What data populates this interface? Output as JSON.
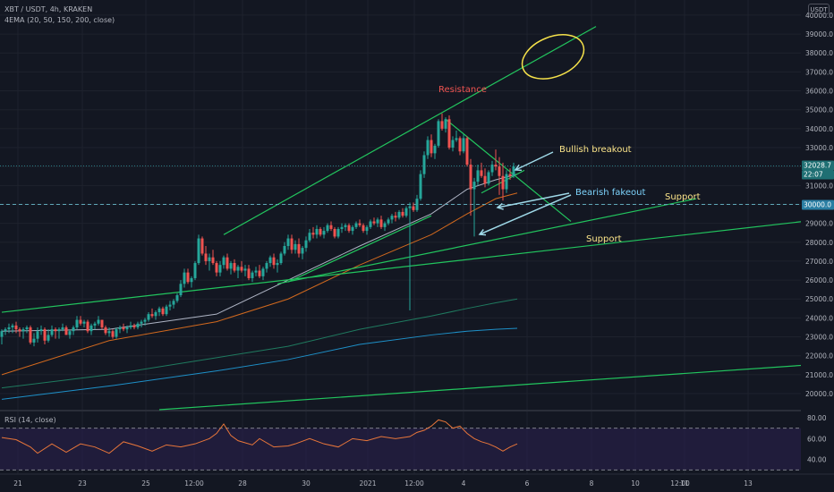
{
  "header": {
    "symbol": "XBT / USDT, 4h, KRAKEN",
    "indicator": "4EMA (20, 50, 150, 200, close)",
    "currency": "USDT"
  },
  "rsi_panel": {
    "label": "RSI (14, close)"
  },
  "colors": {
    "background": "#131722",
    "grid": "#1e222d",
    "candle_up": "#26a69a",
    "candle_down": "#ef5350",
    "trendline": "#22c55e",
    "ema20": "#aeb4c4",
    "ema50": "#d2691e",
    "ema150": "#1f7a5f",
    "ema200": "#1e90c8",
    "rsi_line": "#e8763a",
    "rsi_band": "#2b2050",
    "annotation_arrow": "#9fd9e8",
    "ellipse": "#f5e14a"
  },
  "annotations": {
    "resistance": "Resistance",
    "bullish": "Bullish breakout",
    "bearish": "Bearish fakeout",
    "support1": "Support",
    "support2": "Support"
  },
  "price_labels": {
    "current": "32028.7",
    "countdown": "22:07",
    "dashed_level": "30000.0"
  },
  "chart_data": {
    "type": "candlestick",
    "x_axis_labels": [
      "21",
      "23",
      "25",
      "12:00",
      "28",
      "30",
      "2021",
      "12:00",
      "4",
      "6",
      "8",
      "10",
      "12:00",
      "11",
      "13"
    ],
    "y_axis_ticks": [
      "40000.0",
      "39000.0",
      "38000.0",
      "37000.0",
      "36000.0",
      "35000.0",
      "34000.0",
      "33000.0",
      "32000.0",
      "31000.0",
      "30000.0",
      "29000.0",
      "28000.0",
      "27000.0",
      "26000.0",
      "25000.0",
      "24000.0",
      "23000.0",
      "22000.0",
      "21000.0",
      "20000.0"
    ],
    "ylim": [
      19150,
      40800
    ],
    "rsi_ticks": [
      "80.00",
      "60.00",
      "40.00"
    ],
    "rsi_levels": [
      70,
      30
    ],
    "rsi_ylim": [
      26,
      86
    ],
    "current_price": 32028.7,
    "dashed_level": 30000,
    "ema_anchors": {
      "ema20": [
        [
          0,
          23300
        ],
        [
          30,
          23400
        ],
        [
          60,
          24200
        ],
        [
          80,
          26000
        ],
        [
          100,
          27800
        ],
        [
          120,
          29500
        ],
        [
          130,
          30800
        ],
        [
          138,
          31300
        ],
        [
          144,
          31600
        ]
      ],
      "ema50": [
        [
          0,
          21000
        ],
        [
          30,
          22800
        ],
        [
          60,
          23800
        ],
        [
          80,
          25000
        ],
        [
          100,
          26800
        ],
        [
          120,
          28400
        ],
        [
          130,
          29500
        ],
        [
          138,
          30300
        ],
        [
          144,
          30600
        ]
      ],
      "ema150": [
        [
          0,
          20300
        ],
        [
          30,
          21000
        ],
        [
          60,
          21900
        ],
        [
          80,
          22500
        ],
        [
          100,
          23400
        ],
        [
          120,
          24100
        ],
        [
          130,
          24500
        ],
        [
          138,
          24800
        ],
        [
          144,
          25000
        ]
      ],
      "ema200": [
        [
          0,
          19700
        ],
        [
          30,
          20400
        ],
        [
          60,
          21200
        ],
        [
          80,
          21800
        ],
        [
          100,
          22600
        ],
        [
          120,
          23100
        ],
        [
          130,
          23300
        ],
        [
          138,
          23400
        ],
        [
          144,
          23450
        ]
      ]
    },
    "trendlines": [
      {
        "name": "resistance",
        "from": [
          62,
          28400
        ],
        "to": [
          166,
          39400
        ]
      },
      {
        "name": "upper-support",
        "from": [
          77,
          25800
        ],
        "to": [
          194,
          30300
        ]
      },
      {
        "name": "lower-support",
        "from": [
          0,
          24300
        ],
        "to": [
          224,
          29100
        ]
      },
      {
        "name": "rising-support",
        "from": [
          80,
          25900
        ],
        "to": [
          120,
          29400
        ]
      },
      {
        "name": "descending-resistance",
        "from": [
          124,
          34500
        ],
        "to": [
          159,
          29100
        ]
      },
      {
        "name": "long-term-support",
        "from": [
          44,
          19150
        ],
        "to": [
          224,
          21500
        ]
      },
      {
        "name": "short-support",
        "from": [
          134,
          30600
        ],
        "to": [
          146,
          31800
        ]
      }
    ],
    "ellipse": {
      "center": [
        154,
        37800
      ],
      "rx_bars": 9,
      "ry_price": 1050
    },
    "candles": [
      [
        23000,
        23400,
        22600,
        23300
      ],
      [
        23300,
        23500,
        23100,
        23400
      ],
      [
        23400,
        23700,
        23200,
        23500
      ],
      [
        23500,
        23700,
        23200,
        23600
      ],
      [
        23600,
        23800,
        23200,
        23400
      ],
      [
        23400,
        23500,
        23000,
        23300
      ],
      [
        23300,
        23500,
        22900,
        23400
      ],
      [
        23400,
        23600,
        23200,
        23500
      ],
      [
        23500,
        23600,
        22600,
        22700
      ],
      [
        22700,
        23200,
        22500,
        22900
      ],
      [
        22900,
        23500,
        22700,
        23300
      ],
      [
        23300,
        23600,
        23100,
        23400
      ],
      [
        23400,
        23500,
        22600,
        22800
      ],
      [
        22800,
        23400,
        22700,
        23100
      ],
      [
        23100,
        23600,
        23000,
        23400
      ],
      [
        23400,
        23500,
        22900,
        23300
      ],
      [
        23300,
        23500,
        22900,
        23400
      ],
      [
        23400,
        23700,
        23300,
        23500
      ],
      [
        23500,
        23600,
        23100,
        23100
      ],
      [
        23100,
        23400,
        22900,
        23300
      ],
      [
        23300,
        23600,
        23100,
        23500
      ],
      [
        23500,
        24100,
        23400,
        23900
      ],
      [
        23900,
        24100,
        23600,
        23700
      ],
      [
        23700,
        23900,
        23500,
        23800
      ],
      [
        23800,
        23900,
        23200,
        23300
      ],
      [
        23300,
        23700,
        23100,
        23600
      ],
      [
        23600,
        23800,
        23400,
        23700
      ],
      [
        23700,
        24100,
        23600,
        23900
      ],
      [
        23900,
        23900,
        23400,
        23500
      ],
      [
        23500,
        23600,
        23100,
        23200
      ],
      [
        23200,
        23500,
        23000,
        23300
      ],
      [
        23300,
        23400,
        22900,
        23000
      ],
      [
        23000,
        23500,
        22900,
        23400
      ],
      [
        23400,
        23600,
        23200,
        23500
      ],
      [
        23500,
        23700,
        23300,
        23400
      ],
      [
        23400,
        23600,
        23200,
        23500
      ],
      [
        23500,
        23800,
        23400,
        23600
      ],
      [
        23600,
        23700,
        23400,
        23500
      ],
      [
        23500,
        23800,
        23400,
        23700
      ],
      [
        23700,
        23900,
        23500,
        23800
      ],
      [
        23800,
        24000,
        23600,
        23900
      ],
      [
        23900,
        24300,
        23800,
        24200
      ],
      [
        24200,
        24500,
        24000,
        24100
      ],
      [
        24100,
        24400,
        23900,
        24300
      ],
      [
        24300,
        24600,
        24100,
        24500
      ],
      [
        24500,
        24600,
        24100,
        24200
      ],
      [
        24200,
        24700,
        24100,
        24600
      ],
      [
        24600,
        24900,
        24400,
        24700
      ],
      [
        24700,
        25000,
        24500,
        24900
      ],
      [
        24900,
        25300,
        24800,
        25200
      ],
      [
        25200,
        26000,
        25100,
        25800
      ],
      [
        25800,
        26600,
        25600,
        26400
      ],
      [
        26400,
        26600,
        25800,
        25900
      ],
      [
        25900,
        26200,
        25600,
        26100
      ],
      [
        26100,
        27000,
        26000,
        26900
      ],
      [
        26900,
        28400,
        26800,
        28200
      ],
      [
        28200,
        28300,
        27300,
        27400
      ],
      [
        27400,
        27800,
        26800,
        27000
      ],
      [
        27000,
        27400,
        26500,
        27200
      ],
      [
        27200,
        27600,
        26800,
        26900
      ],
      [
        26900,
        27000,
        26200,
        26400
      ],
      [
        26400,
        27000,
        26200,
        26800
      ],
      [
        26800,
        27300,
        26600,
        27200
      ],
      [
        27200,
        27400,
        26500,
        26600
      ],
      [
        26600,
        27000,
        26300,
        26900
      ],
      [
        26900,
        27100,
        26400,
        26500
      ],
      [
        26500,
        26800,
        26100,
        26700
      ],
      [
        26700,
        27000,
        26400,
        26500
      ],
      [
        26500,
        26800,
        26200,
        26600
      ],
      [
        26600,
        26800,
        26000,
        26100
      ],
      [
        26100,
        26500,
        25900,
        26400
      ],
      [
        26400,
        26700,
        26200,
        26500
      ],
      [
        26500,
        26800,
        26100,
        26200
      ],
      [
        26200,
        26700,
        26000,
        26600
      ],
      [
        26600,
        27000,
        26400,
        26900
      ],
      [
        26900,
        27300,
        26700,
        27200
      ],
      [
        27200,
        27400,
        26600,
        26800
      ],
      [
        26800,
        27100,
        26400,
        26900
      ],
      [
        26900,
        27500,
        26800,
        27400
      ],
      [
        27400,
        28000,
        27300,
        27800
      ],
      [
        27800,
        28400,
        27600,
        28200
      ],
      [
        28200,
        28400,
        27400,
        27600
      ],
      [
        27600,
        28100,
        27400,
        27900
      ],
      [
        27900,
        28200,
        27200,
        27400
      ],
      [
        27400,
        27800,
        27100,
        27700
      ],
      [
        27700,
        28300,
        27500,
        28100
      ],
      [
        28100,
        28700,
        28000,
        28500
      ],
      [
        28500,
        28800,
        28200,
        28400
      ],
      [
        28400,
        28900,
        28200,
        28700
      ],
      [
        28700,
        28800,
        28300,
        28400
      ],
      [
        28400,
        28800,
        28200,
        28600
      ],
      [
        28600,
        29000,
        28500,
        28900
      ],
      [
        28900,
        29100,
        28600,
        28700
      ],
      [
        28700,
        28800,
        28200,
        28300
      ],
      [
        28300,
        28800,
        28200,
        28700
      ],
      [
        28700,
        29000,
        28500,
        28800
      ],
      [
        28800,
        29000,
        28600,
        28900
      ],
      [
        28900,
        29000,
        28500,
        28600
      ],
      [
        28600,
        28900,
        28400,
        28800
      ],
      [
        28800,
        29100,
        28700,
        29000
      ],
      [
        29000,
        29200,
        28800,
        28900
      ],
      [
        28900,
        29000,
        28500,
        28600
      ],
      [
        28600,
        28900,
        28400,
        28800
      ],
      [
        28800,
        29200,
        28700,
        29100
      ],
      [
        29100,
        29300,
        28900,
        29000
      ],
      [
        29000,
        29300,
        28800,
        29200
      ],
      [
        29200,
        29400,
        28700,
        28800
      ],
      [
        28800,
        29100,
        28600,
        29000
      ],
      [
        29000,
        29300,
        28900,
        29200
      ],
      [
        29200,
        29500,
        29000,
        29400
      ],
      [
        29400,
        29600,
        29100,
        29300
      ],
      [
        29300,
        29700,
        29200,
        29600
      ],
      [
        29600,
        29800,
        29300,
        29400
      ],
      [
        29400,
        29900,
        29300,
        29800
      ],
      [
        29800,
        30100,
        24400,
        29900
      ],
      [
        29900,
        30100,
        29600,
        29700
      ],
      [
        29700,
        30500,
        29600,
        30300
      ],
      [
        30300,
        31800,
        30200,
        31600
      ],
      [
        31600,
        32800,
        31400,
        32600
      ],
      [
        32600,
        33600,
        32400,
        33400
      ],
      [
        33400,
        33700,
        32500,
        32700
      ],
      [
        32700,
        33200,
        32400,
        33100
      ],
      [
        33100,
        34500,
        33000,
        34400
      ],
      [
        34400,
        34800,
        33900,
        34000
      ],
      [
        34000,
        34600,
        33800,
        34500
      ],
      [
        34500,
        34700,
        32900,
        33000
      ],
      [
        33000,
        33600,
        32800,
        33400
      ],
      [
        33400,
        33900,
        33300,
        33500
      ],
      [
        33500,
        33600,
        32600,
        32800
      ],
      [
        32800,
        33700,
        32700,
        33500
      ],
      [
        33500,
        33600,
        32000,
        32100
      ],
      [
        32100,
        32400,
        29400,
        30800
      ],
      [
        30800,
        31400,
        28300,
        31200
      ],
      [
        31200,
        32100,
        31000,
        31800
      ],
      [
        31800,
        32200,
        31400,
        31500
      ],
      [
        31500,
        31900,
        30900,
        31100
      ],
      [
        31100,
        31800,
        31000,
        31700
      ],
      [
        31700,
        32300,
        31500,
        32100
      ],
      [
        32100,
        32900,
        31800,
        32000
      ],
      [
        32000,
        32500,
        30500,
        31500
      ],
      [
        31500,
        32200,
        30200,
        30800
      ],
      [
        30800,
        31800,
        30600,
        31600
      ],
      [
        31600,
        31900,
        31300,
        31500
      ],
      [
        31500,
        32200,
        31400,
        32000
      ]
    ],
    "rsi": [
      [
        0,
        61
      ],
      [
        4,
        59
      ],
      [
        8,
        52
      ],
      [
        10,
        46
      ],
      [
        14,
        55
      ],
      [
        18,
        47
      ],
      [
        22,
        55
      ],
      [
        26,
        52
      ],
      [
        30,
        46
      ],
      [
        34,
        57
      ],
      [
        38,
        53
      ],
      [
        42,
        48
      ],
      [
        46,
        54
      ],
      [
        50,
        52
      ],
      [
        54,
        55
      ],
      [
        58,
        60
      ],
      [
        60,
        65
      ],
      [
        62,
        74
      ],
      [
        64,
        63
      ],
      [
        66,
        58
      ],
      [
        70,
        54
      ],
      [
        72,
        60
      ],
      [
        76,
        52
      ],
      [
        80,
        53
      ],
      [
        82,
        55
      ],
      [
        86,
        60
      ],
      [
        90,
        55
      ],
      [
        94,
        52
      ],
      [
        96,
        56
      ],
      [
        98,
        60
      ],
      [
        102,
        58
      ],
      [
        106,
        62
      ],
      [
        110,
        60
      ],
      [
        114,
        62
      ],
      [
        116,
        66
      ],
      [
        118,
        68
      ],
      [
        120,
        72
      ],
      [
        122,
        78
      ],
      [
        124,
        76
      ],
      [
        126,
        70
      ],
      [
        128,
        72
      ],
      [
        130,
        65
      ],
      [
        132,
        60
      ],
      [
        134,
        57
      ],
      [
        136,
        55
      ],
      [
        138,
        52
      ],
      [
        140,
        48
      ],
      [
        142,
        52
      ],
      [
        144,
        55
      ]
    ]
  }
}
